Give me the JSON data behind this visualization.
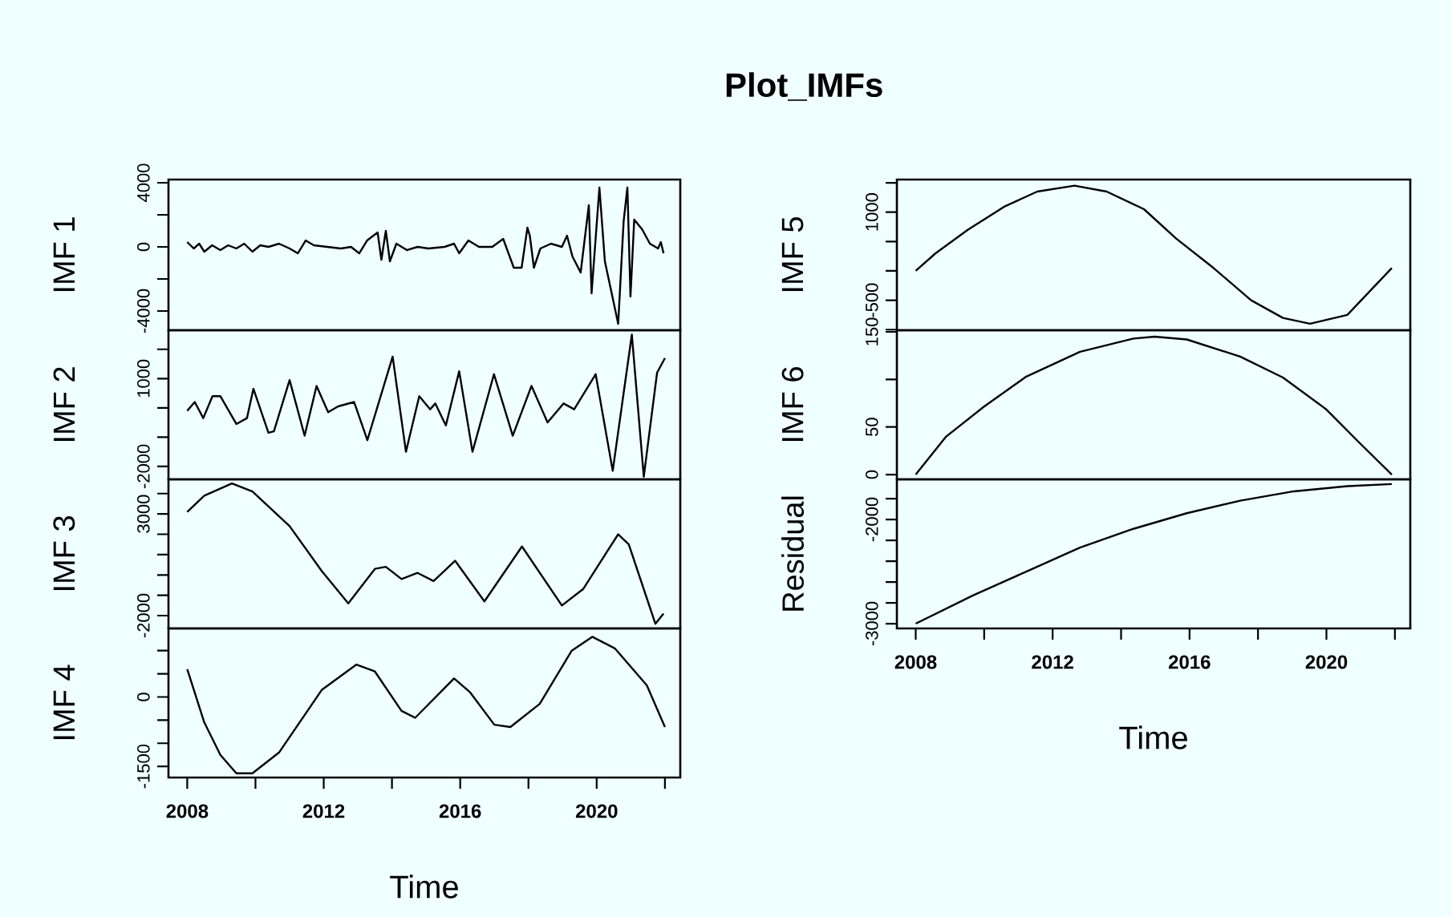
{
  "chart_data": [
    {
      "type": "line",
      "ylabel": "IMF 1",
      "tick_labels": "y",
      "xlim": [
        2007.45,
        2022.45
      ],
      "ylim": [
        -5200,
        4200
      ],
      "yticks": [
        4000,
        {
          "value": 2000,
          "label": null
        },
        0,
        {
          "value": -2000,
          "label": null
        },
        -4000
      ],
      "x": [
        2008.0,
        2008.19,
        2008.35,
        2008.5,
        2008.73,
        2008.97,
        2009.2,
        2009.44,
        2009.67,
        2009.91,
        2010.14,
        2010.38,
        2010.69,
        2011.0,
        2011.24,
        2011.47,
        2011.71,
        2012.5,
        2012.8,
        2013.04,
        2013.27,
        2013.58,
        2013.69,
        2013.82,
        2013.94,
        2014.13,
        2014.44,
        2014.75,
        2015.07,
        2015.54,
        2015.82,
        2015.97,
        2016.24,
        2016.55,
        2016.94,
        2017.26,
        2017.57,
        2017.8,
        2017.97,
        2018.04,
        2018.16,
        2018.35,
        2018.66,
        2018.98,
        2019.13,
        2019.29,
        2019.53,
        2019.77,
        2019.85,
        2020.08,
        2020.24,
        2020.63,
        2020.79,
        2020.9,
        2020.99,
        2021.1,
        2021.33,
        2021.56,
        2021.8,
        2021.88,
        2021.96
      ],
      "series": [
        {
          "color": "#000000",
          "values": [
            300,
            -100,
            200,
            -300,
            100,
            -200,
            100,
            -100,
            200,
            -300,
            100,
            0,
            200,
            -100,
            -400,
            400,
            100,
            -100,
            0,
            -400,
            400,
            900,
            -800,
            1000,
            -900,
            200,
            -200,
            0,
            -100,
            0,
            200,
            -400,
            400,
            0,
            0,
            500,
            -1300,
            -1300,
            1200,
            700,
            -1300,
            -100,
            200,
            0,
            700,
            -600,
            -1600,
            2600,
            -2900,
            3700,
            -900,
            -4800,
            1600,
            3700,
            -3100,
            1700,
            1100,
            200,
            -100,
            300,
            -400
          ]
        }
      ]
    },
    {
      "type": "line",
      "ylabel": "IMF 2",
      "tick_labels": "y",
      "xlim": [
        2007.45,
        2022.45
      ],
      "ylim": [
        -2440,
        2650
      ],
      "yticks": [
        {
          "value": 2000,
          "label": null
        },
        1000,
        {
          "value": 0,
          "label": null
        },
        {
          "value": -1000,
          "label": null
        },
        -2000
      ],
      "x": [
        2008.0,
        2008.22,
        2008.47,
        2008.74,
        2008.97,
        2009.44,
        2009.75,
        2009.94,
        2010.38,
        2010.54,
        2011.0,
        2011.44,
        2011.79,
        2012.13,
        2012.42,
        2012.89,
        2013.28,
        2014.02,
        2014.41,
        2014.8,
        2015.12,
        2015.27,
        2015.58,
        2015.97,
        2016.36,
        2016.99,
        2017.54,
        2018.09,
        2018.56,
        2019.03,
        2019.34,
        2019.97,
        2020.47,
        2021.03,
        2021.38,
        2021.77,
        2022.0
      ],
      "series": [
        {
          "color": "#000000",
          "values": [
            -100,
            200,
            -350,
            400,
            400,
            -550,
            -350,
            650,
            -850,
            -800,
            950,
            -950,
            750,
            -150,
            50,
            200,
            -1100,
            1750,
            -1500,
            400,
            -50,
            150,
            -600,
            1250,
            -1500,
            1150,
            -950,
            750,
            -500,
            150,
            -50,
            1150,
            -2150,
            2500,
            -2350,
            1200,
            1700
          ]
        }
      ]
    },
    {
      "type": "line",
      "ylabel": "IMF 3",
      "tick_labels": "y",
      "xlim": [
        2007.45,
        2022.45
      ],
      "ylim": [
        -2630,
        4700
      ],
      "yticks": [
        {
          "value": 4000,
          "label": null
        },
        3000,
        {
          "value": 2000,
          "label": null
        },
        {
          "value": 1000,
          "label": null
        },
        {
          "value": 0,
          "label": null
        },
        {
          "value": -1000,
          "label": null
        },
        -2000
      ],
      "x": [
        2008.0,
        2008.5,
        2009.31,
        2009.91,
        2011.0,
        2011.94,
        2012.72,
        2013.5,
        2013.82,
        2014.28,
        2014.75,
        2015.22,
        2015.85,
        2016.71,
        2017.81,
        2018.98,
        2019.6,
        2020.63,
        2020.94,
        2021.72,
        2021.96
      ],
      "series": [
        {
          "color": "#000000",
          "values": [
            3100,
            3900,
            4500,
            4100,
            2400,
            200,
            -1400,
            300,
            400,
            -200,
            100,
            -300,
            700,
            -1300,
            1400,
            -1500,
            -700,
            2000,
            1500,
            -2400,
            -1900
          ]
        }
      ]
    },
    {
      "type": "line",
      "ylabel": "IMF 4",
      "xlabel": "Time",
      "xlim": [
        2007.45,
        2022.45
      ],
      "ylim": [
        -1740,
        1480
      ],
      "xticks": [
        2008,
        {
          "value": 2010,
          "label": null
        },
        2012,
        {
          "value": 2014,
          "label": null
        },
        2016,
        {
          "value": 2018,
          "label": null
        },
        2020,
        {
          "value": 2022,
          "label": null
        }
      ],
      "yticks": [
        {
          "value": 1000,
          "label": null
        },
        {
          "value": 500,
          "label": null
        },
        0,
        {
          "value": -500,
          "label": null
        },
        {
          "value": -1000,
          "label": null
        },
        -1500
      ],
      "x": [
        2008.0,
        2008.5,
        2008.97,
        2009.44,
        2009.91,
        2010.69,
        2011.94,
        2012.96,
        2013.5,
        2014.28,
        2014.68,
        2015.82,
        2016.29,
        2017.0,
        2017.47,
        2018.33,
        2019.27,
        2019.87,
        2020.53,
        2021.47,
        2022.0
      ],
      "series": [
        {
          "color": "#000000",
          "values": [
            600,
            -550,
            -1250,
            -1650,
            -1650,
            -1200,
            150,
            700,
            550,
            -300,
            -450,
            400,
            100,
            -600,
            -650,
            -150,
            1000,
            1300,
            1050,
            250,
            -650
          ]
        }
      ]
    },
    {
      "type": "line",
      "title": "Plot_IMFs",
      "ylabel": "IMF 5",
      "tick_labels": "y",
      "xlim": [
        2007.45,
        2022.45
      ],
      "ylim": [
        -1010,
        1555
      ],
      "yticks": [
        {
          "value": 1500,
          "label": null
        },
        1000,
        {
          "value": 500,
          "label": null
        },
        {
          "value": 0,
          "label": null
        },
        -500,
        {
          "value": -1000,
          "label": null
        }
      ],
      "x": [
        2008.0,
        2008.58,
        2009.52,
        2010.61,
        2011.55,
        2012.64,
        2013.58,
        2014.67,
        2015.61,
        2016.7,
        2017.8,
        2018.73,
        2019.52,
        2020.61,
        2021.91
      ],
      "series": [
        {
          "color": "#000000",
          "values": [
            0,
            300,
            700,
            1100,
            1350,
            1450,
            1350,
            1050,
            550,
            50,
            -500,
            -800,
            -900,
            -750,
            50
          ]
        }
      ]
    },
    {
      "type": "line",
      "ylabel": "IMF 6",
      "tick_labels": "y",
      "xlim": [
        2007.45,
        2022.45
      ],
      "ylim": [
        -5,
        151.7
      ],
      "yticks": [
        150,
        {
          "value": 100,
          "label": null
        },
        50,
        0
      ],
      "x": [
        2008.0,
        2008.89,
        2009.98,
        2011.23,
        2012.8,
        2014.36,
        2014.98,
        2015.92,
        2017.48,
        2018.73,
        2019.98,
        2020.92,
        2021.91
      ],
      "series": [
        {
          "color": "#000000",
          "values": [
            0,
            40,
            71,
            103,
            129,
            143,
            145,
            142,
            124,
            102,
            69,
            35,
            0
          ]
        }
      ]
    },
    {
      "type": "line",
      "ylabel": "Residual",
      "xlabel": "Time",
      "xlim": [
        2007.45,
        2022.45
      ],
      "ylim": [
        -3046,
        -1615
      ],
      "xticks": [
        2008,
        {
          "value": 2010,
          "label": null
        },
        2012,
        {
          "value": 2014,
          "label": null
        },
        2016,
        {
          "value": 2018,
          "label": null
        },
        2020,
        {
          "value": 2022,
          "label": null
        }
      ],
      "yticks": [
        {
          "value": -1800,
          "label": null
        },
        -2000,
        {
          "value": -2200,
          "label": null
        },
        {
          "value": -2400,
          "label": null
        },
        {
          "value": -2600,
          "label": null
        },
        {
          "value": -2800,
          "label": null
        },
        -3000
      ],
      "x": [
        2008.0,
        2009.67,
        2011.23,
        2012.8,
        2014.36,
        2015.92,
        2017.48,
        2019.05,
        2020.61,
        2021.91
      ],
      "series": [
        {
          "color": "#000000",
          "values": [
            -3000,
            -2730,
            -2500,
            -2270,
            -2090,
            -1940,
            -1820,
            -1730,
            -1680,
            -1660
          ]
        }
      ]
    }
  ]
}
